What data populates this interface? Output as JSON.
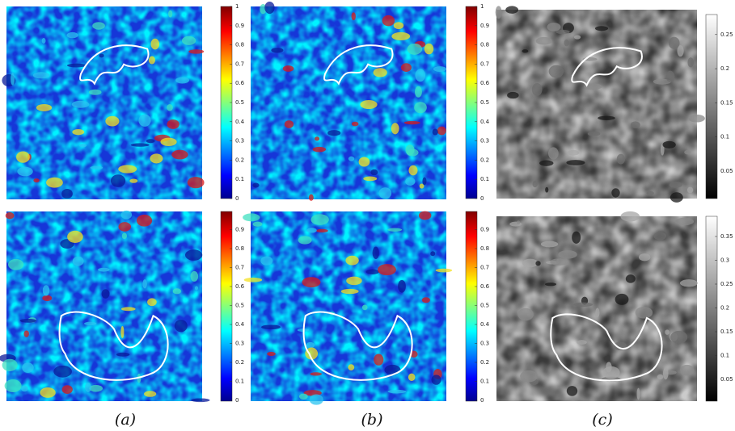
{
  "panels": [
    {
      "caption": "(a)",
      "colorbars": [
        {
          "ticks": [
            "0",
            "0.1",
            "0.2",
            "0.3",
            "0.4",
            "0.5",
            "0.6",
            "0.7",
            "0.8",
            "0.9",
            "1"
          ]
        },
        {
          "ticks": [
            "0",
            "0.1",
            "0.2",
            "0.3",
            "0.4",
            "0.5",
            "0.6",
            "0.7",
            "0.8",
            "0.9"
          ]
        }
      ]
    },
    {
      "caption": "(b)",
      "colorbars": [
        {
          "ticks": [
            "0",
            "0.1",
            "0.2",
            "0.3",
            "0.4",
            "0.5",
            "0.6",
            "0.7",
            "0.8",
            "0.9",
            "1"
          ]
        },
        {
          "ticks": [
            "0",
            "0.1",
            "0.2",
            "0.3",
            "0.4",
            "0.5",
            "0.6",
            "0.7",
            "0.8",
            "0.9"
          ]
        }
      ]
    },
    {
      "caption": "(c)",
      "colorbars": [
        {
          "ticks": [
            "0.05",
            "0.1",
            "0.15",
            "0.2",
            "0.25"
          ]
        },
        {
          "ticks": [
            "0.05",
            "0.1",
            "0.15",
            "0.2",
            "0.25",
            "0.3",
            "0.35"
          ]
        }
      ]
    }
  ]
}
